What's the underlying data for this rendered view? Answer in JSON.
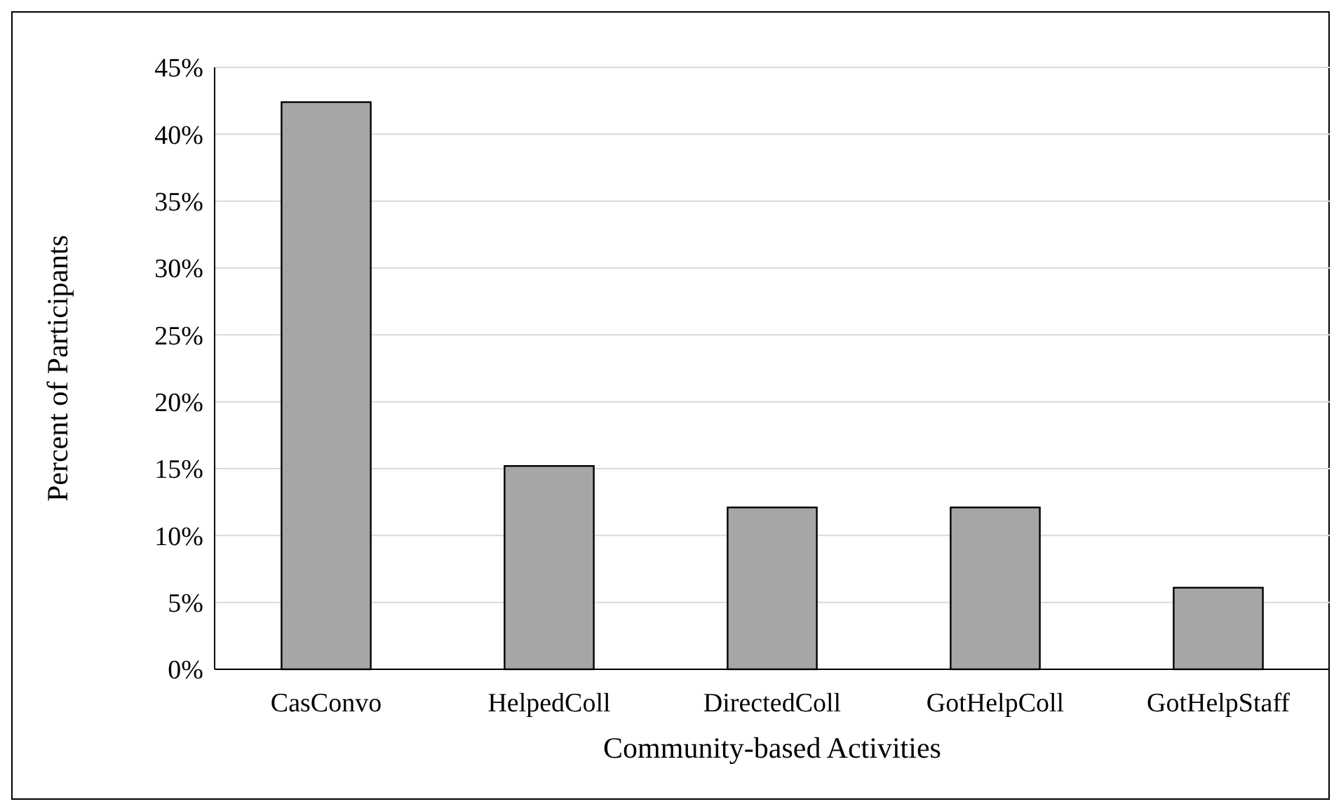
{
  "chart_data": {
    "type": "bar",
    "xlabel": "Community-based Activities",
    "ylabel": "Percent of Participants",
    "categories": [
      "CasConvo",
      "HelpedColl",
      "DirectedColl",
      "GotHelpColl",
      "GotHelpStaff"
    ],
    "values": [
      42.4,
      15.2,
      12.1,
      12.1,
      6.1
    ],
    "color": "#a6a6a6",
    "ylim": [
      0,
      45
    ],
    "yticks": [
      {
        "value": 0,
        "label": "0%"
      },
      {
        "value": 5,
        "label": "5%"
      },
      {
        "value": 10,
        "label": "10%"
      },
      {
        "value": 15,
        "label": "15%"
      },
      {
        "value": 20,
        "label": "20%"
      },
      {
        "value": 25,
        "label": "25%"
      },
      {
        "value": 30,
        "label": "30%"
      },
      {
        "value": 35,
        "label": "35%"
      },
      {
        "value": 40,
        "label": "40%"
      },
      {
        "value": 45,
        "label": "45%"
      }
    ],
    "grid": "y"
  }
}
